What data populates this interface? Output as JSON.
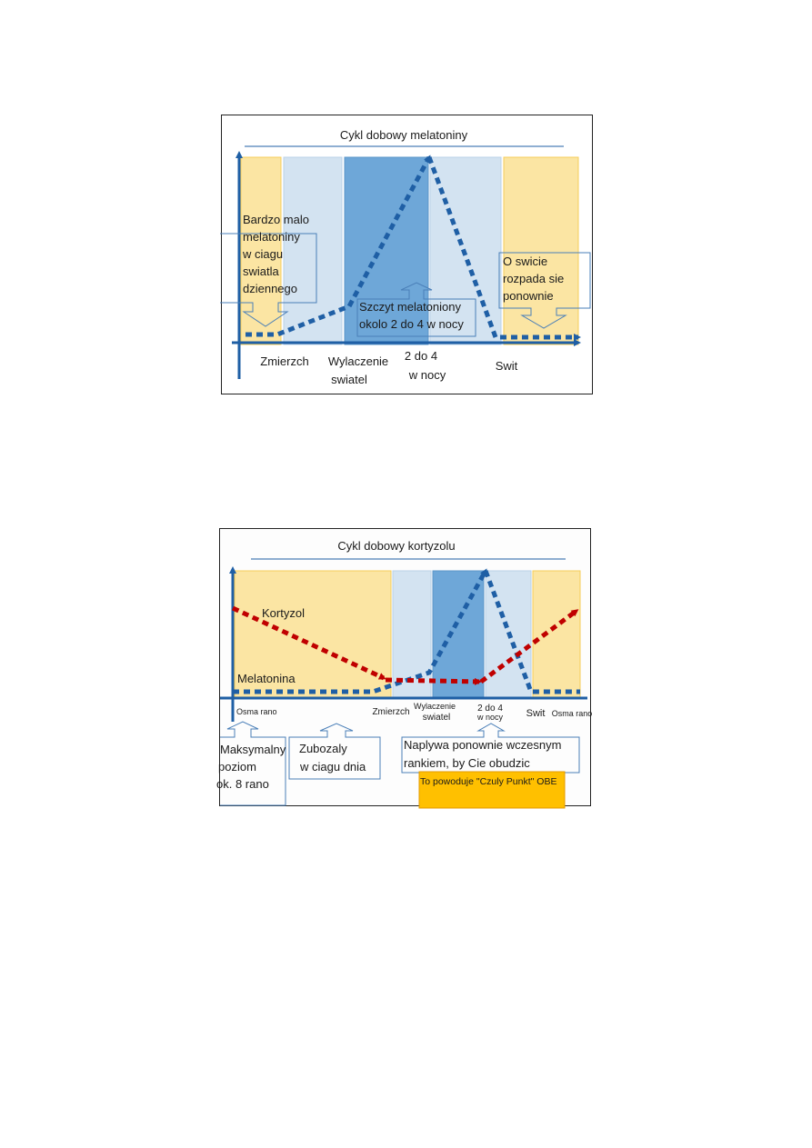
{
  "melatonin_figure": {
    "title": "Cykl dobowy melatoniny",
    "box_daylight": [
      "Bardzo malo",
      "melatoniny",
      "w ciagu",
      "swiatla",
      "dziennego"
    ],
    "box_dawn": [
      "O swicie",
      "rozpada sie",
      "ponownie"
    ],
    "box_peak": [
      "Szczyt melatoniony",
      "okolo 2 do 4 w nocy"
    ],
    "x_labels": {
      "dusk": "Zmierzch",
      "lights_off_1": "Wylaczenie",
      "lights_off_2": "swiatel",
      "night_1": "2 do 4",
      "night_2": "w nocy",
      "dawn": "Swit"
    },
    "colors": {
      "yellow": "#fbe5a3",
      "light_blue": "#d3e3f1",
      "mid_blue": "#6ea7d8",
      "line_blue": "#1f5fa5"
    }
  },
  "cortisol_figure": {
    "title": "Cykl dobowy kortyzolu",
    "series_cortisol": "Kortyzol",
    "series_melatonin": "Melatonina",
    "x_labels": {
      "eight_am_left": "Osma rano",
      "dusk": "Zmierzch",
      "lights_off_1": "Wylaczenie",
      "lights_off_2": "swiatel",
      "night_1": "2 do 4",
      "night_2": "w nocy",
      "dawn": "Swit",
      "eight_am_right": "Osma rano"
    },
    "box_max": [
      "Maksymalny",
      "poziom",
      "ok. 8 rano"
    ],
    "box_depleted": [
      "Zubozaly",
      "w ciagu dnia"
    ],
    "box_return": [
      "Naplywa ponownie wczesnym",
      "rankiem, by Cie obudzic"
    ],
    "box_obe": "To powoduje \"Czuly Punkt\" OBE",
    "colors": {
      "cortisol_red": "#c00000",
      "obe_orange": "#ffc000"
    }
  }
}
